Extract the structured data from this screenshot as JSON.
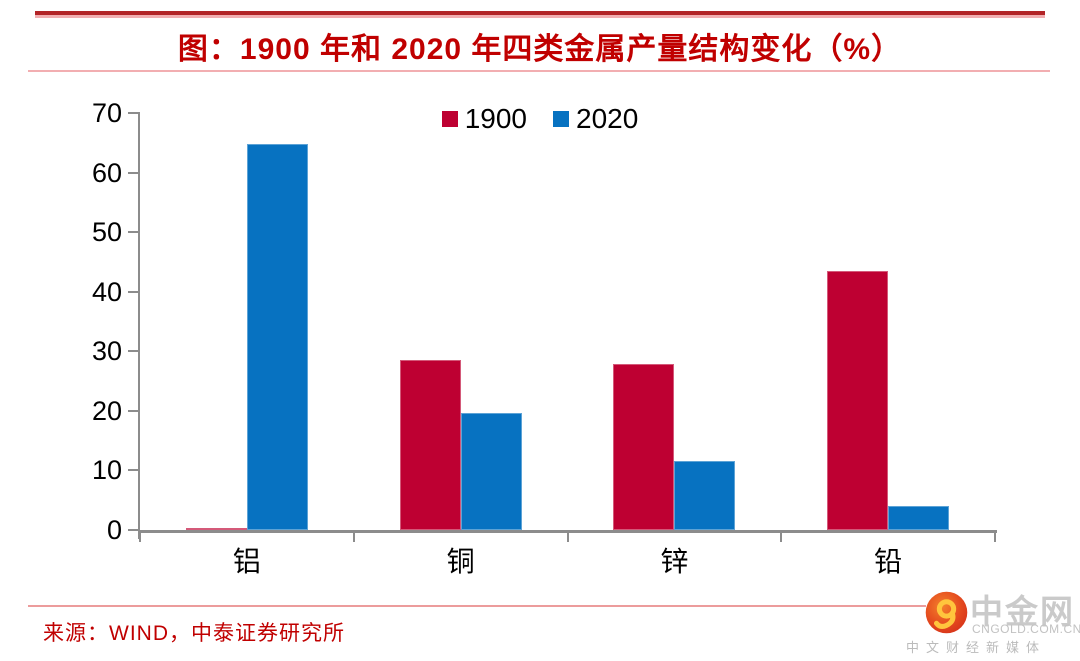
{
  "title": "图：1900 年和 2020 年四类金属产量结构变化（%）",
  "chart_data": {
    "type": "bar",
    "title": "图：1900 年和 2020 年四类金属产量结构变化（%）",
    "categories": [
      "铝",
      "铜",
      "锌",
      "铅"
    ],
    "series": [
      {
        "name": "1900",
        "color": "#BE0032",
        "values": [
          0.4,
          28.5,
          27.8,
          43.5
        ]
      },
      {
        "name": "2020",
        "color": "#0772C1",
        "values": [
          64.8,
          19.6,
          11.6,
          4.0
        ]
      }
    ],
    "xlabel": "",
    "ylabel": "",
    "ylim": [
      0,
      70
    ],
    "yticks": [
      0,
      10,
      20,
      30,
      40,
      50,
      60,
      70
    ],
    "grid": false,
    "legend_position": "top-center"
  },
  "source": "来源：WIND，中泰证券研究所",
  "logo": {
    "name": "中金网",
    "domain": "CNGOLD.COM.CN",
    "tagline": "中文财经新媒体"
  },
  "colors": {
    "series_1900": "#BE0032",
    "series_2020": "#0772C1",
    "accent_red": "#C00000",
    "rule_dark_red": "#B32427",
    "rule_pink": "#F2AEB1",
    "axis_gray": "#8C8C8C",
    "logo_gray": "#CACACA"
  }
}
